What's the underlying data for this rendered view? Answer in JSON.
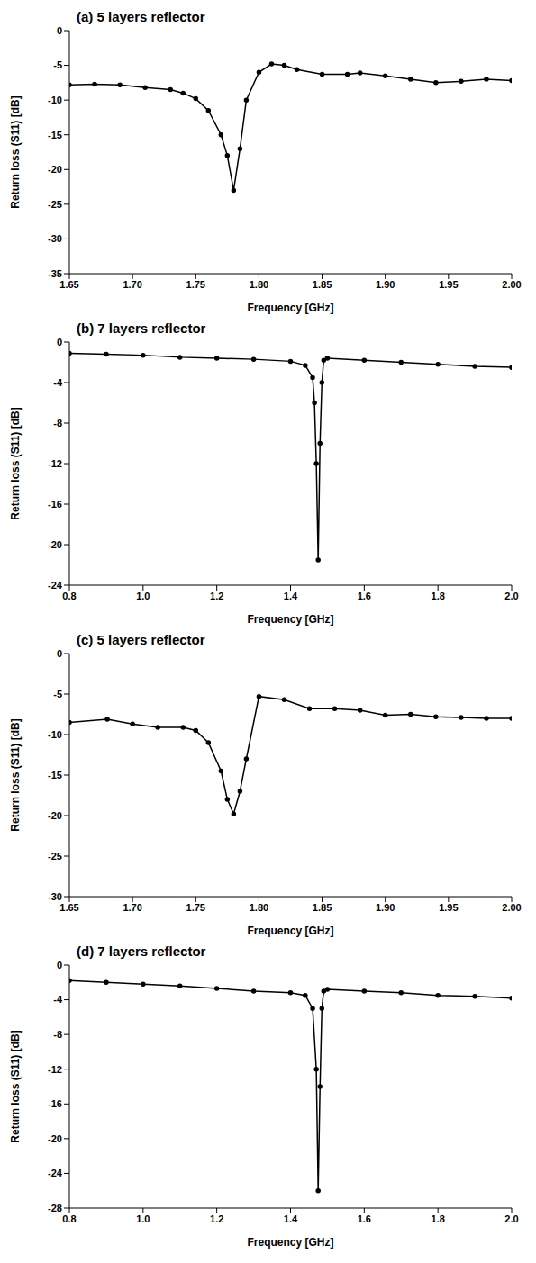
{
  "chart_data": [
    {
      "type": "line",
      "title": "(a) 5 layers reflector",
      "x_label": "Frequency [GHz]",
      "y_label": "Return loss (S11) [dB]",
      "color": "#000000",
      "marker": "circle",
      "line_style": "solid",
      "grid": false,
      "xlim": [
        1.65,
        2.0
      ],
      "xticks": [
        1.65,
        {
          "value": 1.7,
          "label": "1.70"
        },
        1.75,
        {
          "value": 1.8,
          "label": "1.80"
        },
        1.85,
        {
          "value": 1.9,
          "label": "1.90"
        },
        1.95,
        {
          "value": 2.0,
          "label": "2.00"
        }
      ],
      "ylim": [
        -35,
        0
      ],
      "yticks": [
        -35,
        -30,
        -25,
        -20,
        -15,
        -10,
        -5,
        0
      ],
      "x": [
        1.65,
        1.67,
        1.69,
        1.71,
        1.73,
        1.74,
        1.75,
        1.76,
        1.77,
        1.775,
        1.78,
        1.785,
        1.79,
        1.8,
        1.81,
        1.82,
        1.83,
        1.85,
        1.87,
        1.88,
        1.9,
        1.92,
        1.94,
        1.96,
        1.98,
        2.0
      ],
      "values": [
        -7.8,
        -7.7,
        -7.8,
        -8.2,
        -8.5,
        -9,
        -9.8,
        -11.5,
        -15,
        -18,
        -23,
        -17,
        -10,
        -6,
        -4.8,
        -5,
        -5.6,
        -6.3,
        -6.3,
        -6.1,
        -6.5,
        -7,
        -7.5,
        -7.3,
        -7,
        -7.2
      ]
    },
    {
      "type": "line",
      "title": "(b) 7 layers reflector",
      "x_label": "Frequency [GHz]",
      "y_label": "Return loss (S11) [dB]",
      "color": "#000000",
      "marker": "circle",
      "line_style": "solid",
      "grid": false,
      "xlim": [
        0.8,
        2.0
      ],
      "xticks": [
        0.8,
        {
          "value": 1.0,
          "label": "1.0"
        },
        1.2,
        1.4,
        1.6,
        1.8,
        {
          "value": 2.0,
          "label": "2.0"
        }
      ],
      "ylim": [
        -24,
        0
      ],
      "yticks": [
        -24,
        -20,
        -16,
        -12,
        -8,
        -4,
        0
      ],
      "x": [
        0.8,
        0.9,
        1.0,
        1.1,
        1.2,
        1.3,
        1.4,
        1.44,
        1.46,
        1.465,
        1.47,
        1.475,
        1.48,
        1.485,
        1.49,
        1.5,
        1.6,
        1.7,
        1.8,
        1.9,
        2.0
      ],
      "values": [
        -1.1,
        -1.2,
        -1.3,
        -1.5,
        -1.6,
        -1.7,
        -1.9,
        -2.3,
        -3.5,
        -6,
        -12,
        -21.5,
        -10,
        -4,
        -1.8,
        -1.6,
        -1.8,
        -2,
        -2.2,
        -2.4,
        -2.5
      ]
    },
    {
      "type": "line",
      "title": "(c) 5 layers reflector",
      "x_label": "Frequency [GHz]",
      "y_label": "Return loss (S11) [dB]",
      "color": "#000000",
      "marker": "circle",
      "line_style": "solid",
      "grid": false,
      "xlim": [
        1.65,
        2.0
      ],
      "xticks": [
        1.65,
        {
          "value": 1.7,
          "label": "1.70"
        },
        1.75,
        {
          "value": 1.8,
          "label": "1.80"
        },
        1.85,
        {
          "value": 1.9,
          "label": "1.90"
        },
        1.95,
        {
          "value": 2.0,
          "label": "2.00"
        }
      ],
      "ylim": [
        -30,
        0
      ],
      "yticks": [
        -30,
        -25,
        -20,
        -15,
        -10,
        -5,
        0
      ],
      "x": [
        1.65,
        1.68,
        1.7,
        1.72,
        1.74,
        1.75,
        1.76,
        1.77,
        1.775,
        1.78,
        1.785,
        1.79,
        1.8,
        1.82,
        1.84,
        1.86,
        1.88,
        1.9,
        1.92,
        1.94,
        1.96,
        1.98,
        2.0
      ],
      "values": [
        -8.5,
        -8.1,
        -8.7,
        -9.1,
        -9.1,
        -9.5,
        -11,
        -14.5,
        -18,
        -19.8,
        -17,
        -13,
        -5.3,
        -5.7,
        -6.8,
        -6.8,
        -7,
        -7.6,
        -7.5,
        -7.8,
        -7.9,
        -8,
        -8
      ]
    },
    {
      "type": "line",
      "title": "(d) 7 layers reflector",
      "x_label": "Frequency [GHz]",
      "y_label": "Return loss (S11) [dB]",
      "color": "#000000",
      "marker": "circle",
      "line_style": "solid",
      "grid": false,
      "xlim": [
        0.8,
        2.0
      ],
      "xticks": [
        0.8,
        {
          "value": 1.0,
          "label": "1.0"
        },
        1.2,
        1.4,
        1.6,
        1.8,
        {
          "value": 2.0,
          "label": "2.0"
        }
      ],
      "ylim": [
        -28,
        0
      ],
      "yticks": [
        -28,
        -24,
        -20,
        -16,
        -12,
        -8,
        -4,
        0
      ],
      "x": [
        0.8,
        0.9,
        1.0,
        1.1,
        1.2,
        1.3,
        1.4,
        1.44,
        1.46,
        1.47,
        1.475,
        1.48,
        1.485,
        1.49,
        1.5,
        1.6,
        1.7,
        1.8,
        1.9,
        2.0
      ],
      "values": [
        -1.8,
        -2,
        -2.2,
        -2.4,
        -2.7,
        -3,
        -3.2,
        -3.5,
        -5,
        -12,
        -26,
        -14,
        -5,
        -3,
        -2.8,
        -3,
        -3.2,
        -3.5,
        -3.6,
        -3.8
      ]
    }
  ]
}
